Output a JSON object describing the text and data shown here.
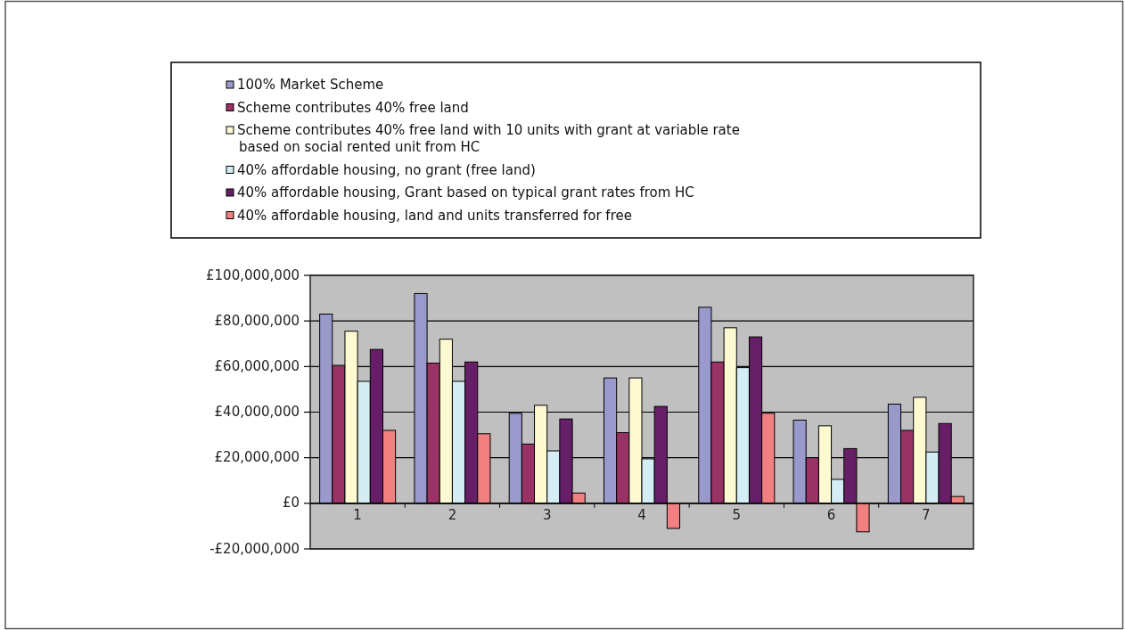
{
  "chart_data": {
    "type": "bar",
    "categories": [
      "1",
      "2",
      "3",
      "4",
      "5",
      "6",
      "7"
    ],
    "series": [
      {
        "name": "100% Market Scheme",
        "color": "#9999cc",
        "values": [
          83000000,
          92000000,
          39500000,
          55000000,
          86000000,
          36500000,
          43500000
        ]
      },
      {
        "name": "Scheme contributes 40% free land",
        "color": "#993366",
        "values": [
          60500000,
          61500000,
          26000000,
          31000000,
          62000000,
          20000000,
          32000000
        ]
      },
      {
        "name": "Scheme contributes 40% free land with 10 units with grant at variable rate based on social rented unit from HC",
        "color": "#fdfad2",
        "values": [
          75500000,
          72000000,
          43000000,
          55000000,
          77000000,
          34000000,
          46500000
        ]
      },
      {
        "name": "40% affordable housing, no grant (free land)",
        "color": "#d4ecf4",
        "values": [
          53500000,
          53500000,
          23000000,
          19500000,
          59500000,
          10500000,
          22500000
        ]
      },
      {
        "name": "40% affordable housing, Grant based on typical grant rates from HC",
        "color": "#661f66",
        "values": [
          67500000,
          62000000,
          37000000,
          42500000,
          73000000,
          24000000,
          35000000
        ]
      },
      {
        "name": "40% affordable housing, land and units transferred for free",
        "color": "#f28080",
        "values": [
          32000000,
          30500000,
          4500000,
          -11000000,
          39500000,
          -12500000,
          3000000
        ]
      }
    ],
    "ylim": [
      -20000000,
      100000000
    ],
    "yticks": [
      {
        "value": -20000000,
        "label": "-£20,000,000"
      },
      {
        "value": 0,
        "label": "£0"
      },
      {
        "value": 20000000,
        "label": "£20,000,000"
      },
      {
        "value": 40000000,
        "label": "£40,000,000"
      },
      {
        "value": 60000000,
        "label": "£60,000,000"
      },
      {
        "value": 80000000,
        "label": "£80,000,000"
      },
      {
        "value": 100000000,
        "label": "£100,000,000"
      }
    ],
    "grid": "y",
    "legend": "top"
  }
}
